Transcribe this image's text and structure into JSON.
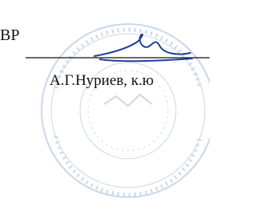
{
  "fragment": {
    "left_text": "ВР",
    "signer": "А.Г.Нуриев, к.ю"
  }
}
